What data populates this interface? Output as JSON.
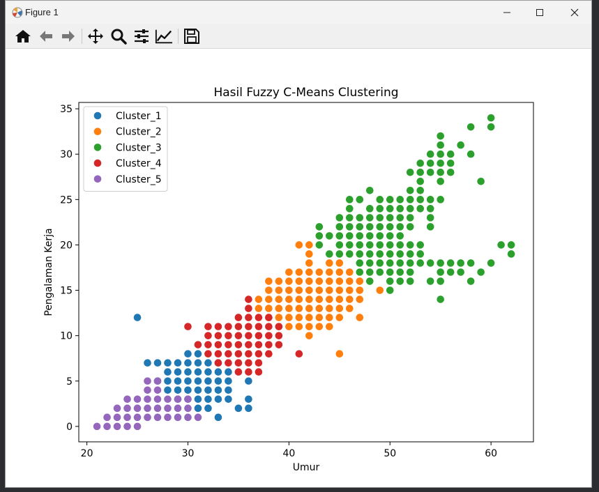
{
  "window": {
    "title": "Figure 1",
    "minimize_icon": "minimize-icon",
    "maximize_icon": "maximize-icon",
    "close_icon": "close-icon"
  },
  "toolbar": {
    "buttons": [
      {
        "icon": "home-icon"
      },
      {
        "icon": "back-arrow-icon"
      },
      {
        "icon": "forward-arrow-icon"
      },
      {
        "icon": "pan-icon"
      },
      {
        "icon": "zoom-icon"
      },
      {
        "icon": "configure-subplots-icon"
      },
      {
        "icon": "edit-axis-icon"
      },
      {
        "icon": "save-icon"
      }
    ]
  },
  "chart_data": {
    "type": "scatter",
    "title": "Hasil Fuzzy C-Means Clustering",
    "xlabel": "Umur",
    "ylabel": "Pengalaman Kerja",
    "xlim": [
      19.2,
      64.2
    ],
    "ylim": [
      -1.7,
      35.7
    ],
    "xticks": [
      "20",
      "30",
      "40",
      "50",
      "60"
    ],
    "yticks": [
      "0",
      "5",
      "10",
      "15",
      "20",
      "25",
      "30",
      "35"
    ],
    "legend_position": "upper-left",
    "grid": false,
    "series": [
      {
        "name": "Cluster_1",
        "color": "#1f77b4",
        "points": [
          [
            25,
            12
          ],
          [
            26,
            7
          ],
          [
            27,
            7
          ],
          [
            27,
            5
          ],
          [
            28,
            7
          ],
          [
            28,
            6
          ],
          [
            28,
            5
          ],
          [
            28,
            4
          ],
          [
            29,
            7
          ],
          [
            29,
            6
          ],
          [
            29,
            5
          ],
          [
            29,
            4
          ],
          [
            29,
            3
          ],
          [
            30,
            8
          ],
          [
            30,
            7
          ],
          [
            30,
            6
          ],
          [
            30,
            5
          ],
          [
            30,
            4
          ],
          [
            30,
            3
          ],
          [
            31,
            8
          ],
          [
            31,
            7
          ],
          [
            31,
            6
          ],
          [
            31,
            5
          ],
          [
            31,
            4
          ],
          [
            31,
            3
          ],
          [
            31,
            2
          ],
          [
            32,
            7
          ],
          [
            32,
            6
          ],
          [
            32,
            5
          ],
          [
            32,
            4
          ],
          [
            32,
            3
          ],
          [
            32,
            2
          ],
          [
            33,
            7
          ],
          [
            33,
            6
          ],
          [
            33,
            5
          ],
          [
            33,
            4
          ],
          [
            33,
            3
          ],
          [
            33,
            1
          ],
          [
            34,
            6
          ],
          [
            34,
            5
          ],
          [
            34,
            4
          ],
          [
            34,
            3
          ],
          [
            35,
            2
          ],
          [
            36,
            5
          ],
          [
            36,
            3
          ],
          [
            36,
            2
          ]
        ]
      },
      {
        "name": "Cluster_2",
        "color": "#ff7f0e",
        "points": [
          [
            37,
            14
          ],
          [
            37,
            13
          ],
          [
            38,
            16
          ],
          [
            38,
            15
          ],
          [
            38,
            14
          ],
          [
            38,
            13
          ],
          [
            38,
            12
          ],
          [
            39,
            16
          ],
          [
            39,
            15
          ],
          [
            39,
            14
          ],
          [
            39,
            13
          ],
          [
            39,
            12
          ],
          [
            39,
            11
          ],
          [
            40,
            17
          ],
          [
            40,
            16
          ],
          [
            40,
            15
          ],
          [
            40,
            14
          ],
          [
            40,
            13
          ],
          [
            40,
            12
          ],
          [
            40,
            11
          ],
          [
            41,
            20
          ],
          [
            41,
            17
          ],
          [
            41,
            16
          ],
          [
            41,
            15
          ],
          [
            41,
            14
          ],
          [
            41,
            13
          ],
          [
            41,
            12
          ],
          [
            41,
            11
          ],
          [
            42,
            20
          ],
          [
            42,
            19
          ],
          [
            42,
            18
          ],
          [
            42,
            17
          ],
          [
            42,
            16
          ],
          [
            42,
            15
          ],
          [
            42,
            14
          ],
          [
            42,
            13
          ],
          [
            42,
            12
          ],
          [
            42,
            11
          ],
          [
            42,
            10
          ],
          [
            43,
            17
          ],
          [
            43,
            16
          ],
          [
            43,
            15
          ],
          [
            43,
            14
          ],
          [
            43,
            13
          ],
          [
            43,
            12
          ],
          [
            43,
            11
          ],
          [
            44,
            18
          ],
          [
            44,
            17
          ],
          [
            44,
            16
          ],
          [
            44,
            15
          ],
          [
            44,
            14
          ],
          [
            44,
            13
          ],
          [
            44,
            12
          ],
          [
            44,
            11
          ],
          [
            45,
            18
          ],
          [
            45,
            17
          ],
          [
            45,
            16
          ],
          [
            45,
            15
          ],
          [
            45,
            14
          ],
          [
            45,
            13
          ],
          [
            45,
            12
          ],
          [
            45,
            8
          ],
          [
            46,
            17
          ],
          [
            46,
            16
          ],
          [
            46,
            15
          ],
          [
            46,
            14
          ],
          [
            46,
            13
          ],
          [
            47,
            16
          ],
          [
            47,
            15
          ],
          [
            47,
            14
          ],
          [
            47,
            12
          ],
          [
            49,
            15
          ]
        ]
      },
      {
        "name": "Cluster_3",
        "color": "#2ca02c",
        "points": [
          [
            43,
            22
          ],
          [
            43,
            21
          ],
          [
            43,
            20
          ],
          [
            44,
            21
          ],
          [
            44,
            19
          ],
          [
            45,
            23
          ],
          [
            45,
            22
          ],
          [
            45,
            21
          ],
          [
            45,
            20
          ],
          [
            45,
            19
          ],
          [
            46,
            25
          ],
          [
            46,
            24
          ],
          [
            46,
            23
          ],
          [
            46,
            22
          ],
          [
            46,
            21
          ],
          [
            46,
            20
          ],
          [
            46,
            19
          ],
          [
            47,
            25
          ],
          [
            47,
            23
          ],
          [
            47,
            22
          ],
          [
            47,
            21
          ],
          [
            47,
            20
          ],
          [
            47,
            19
          ],
          [
            47,
            18
          ],
          [
            47,
            17
          ],
          [
            48,
            26
          ],
          [
            48,
            24
          ],
          [
            48,
            23
          ],
          [
            48,
            22
          ],
          [
            48,
            21
          ],
          [
            48,
            20
          ],
          [
            48,
            19
          ],
          [
            48,
            18
          ],
          [
            48,
            17
          ],
          [
            48,
            16
          ],
          [
            49,
            25
          ],
          [
            49,
            24
          ],
          [
            49,
            23
          ],
          [
            49,
            22
          ],
          [
            49,
            21
          ],
          [
            49,
            20
          ],
          [
            49,
            19
          ],
          [
            49,
            18
          ],
          [
            49,
            17
          ],
          [
            50,
            25
          ],
          [
            50,
            24
          ],
          [
            50,
            23
          ],
          [
            50,
            22
          ],
          [
            50,
            21
          ],
          [
            50,
            20
          ],
          [
            50,
            19
          ],
          [
            50,
            18
          ],
          [
            50,
            17
          ],
          [
            50,
            16
          ],
          [
            50,
            15
          ],
          [
            51,
            25
          ],
          [
            51,
            24
          ],
          [
            51,
            23
          ],
          [
            51,
            22
          ],
          [
            51,
            21
          ],
          [
            51,
            20
          ],
          [
            51,
            19
          ],
          [
            51,
            18
          ],
          [
            51,
            17
          ],
          [
            51,
            16
          ],
          [
            52,
            28
          ],
          [
            52,
            26
          ],
          [
            52,
            25
          ],
          [
            52,
            24
          ],
          [
            52,
            23
          ],
          [
            52,
            22
          ],
          [
            52,
            20
          ],
          [
            52,
            19
          ],
          [
            52,
            18
          ],
          [
            52,
            17
          ],
          [
            52,
            16
          ],
          [
            53,
            29
          ],
          [
            53,
            28
          ],
          [
            53,
            27
          ],
          [
            53,
            26
          ],
          [
            53,
            25
          ],
          [
            53,
            24
          ],
          [
            53,
            20
          ],
          [
            53,
            19
          ],
          [
            53,
            18
          ],
          [
            54,
            30
          ],
          [
            54,
            29
          ],
          [
            54,
            28
          ],
          [
            54,
            25
          ],
          [
            54,
            24
          ],
          [
            54,
            23
          ],
          [
            54,
            22
          ],
          [
            54,
            18
          ],
          [
            54,
            16
          ],
          [
            55,
            32
          ],
          [
            55,
            31
          ],
          [
            55,
            30
          ],
          [
            55,
            29
          ],
          [
            55,
            28
          ],
          [
            55,
            27
          ],
          [
            55,
            25
          ],
          [
            55,
            18
          ],
          [
            55,
            17
          ],
          [
            55,
            16
          ],
          [
            55,
            14
          ],
          [
            56,
            30
          ],
          [
            56,
            29
          ],
          [
            56,
            28
          ],
          [
            56,
            18
          ],
          [
            56,
            17
          ],
          [
            57,
            31
          ],
          [
            57,
            18
          ],
          [
            57,
            17
          ],
          [
            58,
            33
          ],
          [
            58,
            30
          ],
          [
            58,
            18
          ],
          [
            58,
            16
          ],
          [
            59,
            27
          ],
          [
            59,
            17
          ],
          [
            60,
            34
          ],
          [
            60,
            33
          ],
          [
            60,
            18
          ],
          [
            61,
            20
          ],
          [
            62,
            20
          ],
          [
            62,
            19
          ]
        ]
      },
      {
        "name": "Cluster_4",
        "color": "#d62728",
        "points": [
          [
            30,
            11
          ],
          [
            31,
            9
          ],
          [
            32,
            11
          ],
          [
            32,
            10
          ],
          [
            32,
            9
          ],
          [
            32,
            8
          ],
          [
            33,
            11
          ],
          [
            33,
            10
          ],
          [
            33,
            9
          ],
          [
            33,
            8
          ],
          [
            33,
            7
          ],
          [
            34,
            11
          ],
          [
            34,
            10
          ],
          [
            34,
            9
          ],
          [
            34,
            8
          ],
          [
            34,
            7
          ],
          [
            35,
            12
          ],
          [
            35,
            11
          ],
          [
            35,
            10
          ],
          [
            35,
            9
          ],
          [
            35,
            8
          ],
          [
            35,
            7
          ],
          [
            35,
            6
          ],
          [
            36,
            14
          ],
          [
            36,
            13
          ],
          [
            36,
            12
          ],
          [
            36,
            11
          ],
          [
            36,
            10
          ],
          [
            36,
            9
          ],
          [
            36,
            8
          ],
          [
            36,
            7
          ],
          [
            36,
            6
          ],
          [
            37,
            12
          ],
          [
            37,
            11
          ],
          [
            37,
            10
          ],
          [
            37,
            9
          ],
          [
            37,
            8
          ],
          [
            37,
            7
          ],
          [
            37,
            6
          ],
          [
            38,
            12
          ],
          [
            38,
            11
          ],
          [
            38,
            10
          ],
          [
            38,
            9
          ],
          [
            38,
            8
          ],
          [
            39,
            11
          ],
          [
            39,
            10
          ],
          [
            39,
            9
          ],
          [
            41,
            8
          ]
        ]
      },
      {
        "name": "Cluster_5",
        "color": "#9467bd",
        "points": [
          [
            21,
            0
          ],
          [
            22,
            1
          ],
          [
            22,
            0
          ],
          [
            23,
            2
          ],
          [
            23,
            1
          ],
          [
            23,
            0
          ],
          [
            24,
            3
          ],
          [
            24,
            2
          ],
          [
            24,
            1
          ],
          [
            24,
            0
          ],
          [
            25,
            3
          ],
          [
            25,
            2
          ],
          [
            25,
            1
          ],
          [
            25,
            0
          ],
          [
            26,
            5
          ],
          [
            26,
            4
          ],
          [
            26,
            3
          ],
          [
            26,
            2
          ],
          [
            26,
            1
          ],
          [
            27,
            5
          ],
          [
            27,
            4
          ],
          [
            27,
            3
          ],
          [
            27,
            2
          ],
          [
            27,
            1
          ],
          [
            28,
            3
          ],
          [
            28,
            2
          ],
          [
            28,
            1
          ],
          [
            29,
            3
          ],
          [
            29,
            2
          ],
          [
            29,
            1
          ],
          [
            30,
            3
          ],
          [
            30,
            2
          ],
          [
            30,
            1
          ],
          [
            31,
            1
          ]
        ]
      }
    ]
  }
}
